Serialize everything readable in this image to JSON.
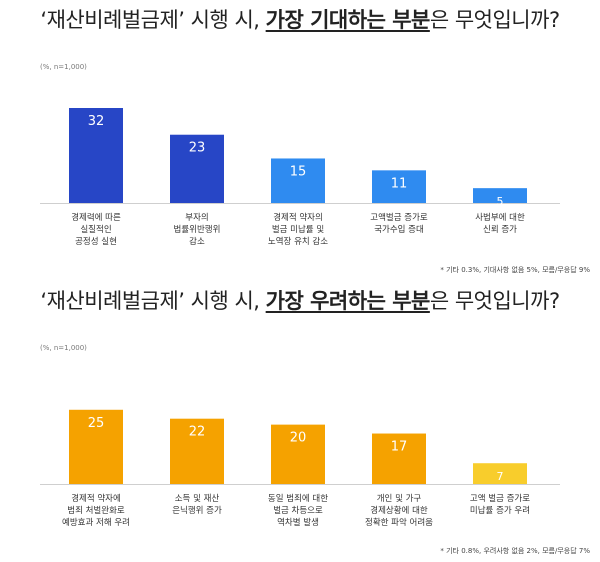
{
  "charts": [
    {
      "title_pre": "‘재산비례벌금제’ 시행 시, ",
      "title_hl": "가장 기대하는 부분",
      "title_post": "은 무엇입니까?",
      "unit": "(%, n=1,000)",
      "footnote": "* 기타 0.3%, 기대사항 없음 5%, 모름/무응답 9%",
      "colors": [
        "#2746c6",
        "#2746c6",
        "#2f8bf0",
        "#2f8bf0",
        "#2f8bf0"
      ],
      "label_colors": [
        "#ffffff",
        "#ffffff",
        "#ffffff",
        "#ffffff",
        "#ffffff"
      ]
    },
    {
      "title_pre": "‘재산비례벌금제’ 시행 시, ",
      "title_hl": "가장 우려하는 부분",
      "title_post": "은 무엇입니까?",
      "unit": "(%, n=1,000)",
      "footnote": "* 기타 0.8%, 우려사항 없음 2%, 모름/무응답 7%",
      "colors": [
        "#f5a200",
        "#f5a200",
        "#f5a200",
        "#f5a200",
        "#f8cd2c"
      ],
      "label_colors": [
        "#ffffff",
        "#ffffff",
        "#ffffff",
        "#ffffff",
        "#ffffff"
      ]
    }
  ],
  "chart_data": [
    {
      "type": "bar",
      "title": "‘재산비례벌금제’ 시행 시, 가장 기대하는 부분은 무엇입니까?",
      "categories": [
        [
          "경제력에 따른",
          "실질적인",
          "공정성 실현"
        ],
        [
          "부자의",
          "법률위반행위",
          "감소"
        ],
        [
          "경제적 약자의",
          "벌금 미납률 및",
          "노역장 유치 감소"
        ],
        [
          "고액벌금 증가로",
          "국가수입 증대"
        ],
        [
          "사법부에 대한",
          "신뢰 증가"
        ]
      ],
      "values": [
        32,
        23,
        15,
        11,
        5
      ],
      "ylim": [
        0,
        35
      ]
    },
    {
      "type": "bar",
      "title": "‘재산비례벌금제’ 시행 시, 가장 우려하는 부분은 무엇입니까?",
      "categories": [
        [
          "경제적 약자에",
          "범죄 처벌완화로",
          "예방효과 저해 우려"
        ],
        [
          "소득 및 재산",
          "은닉행위 증가"
        ],
        [
          "동일 범죄에 대한",
          "벌금 차등으로",
          "역차별 발생"
        ],
        [
          "개인 및 가구",
          "경제상황에 대한",
          "정확한 파악 어려움"
        ],
        [
          "고액 벌금 증가로",
          "미납률 증가 우려"
        ]
      ],
      "values": [
        25,
        22,
        20,
        17,
        7
      ],
      "ylim": [
        0,
        35
      ]
    }
  ]
}
